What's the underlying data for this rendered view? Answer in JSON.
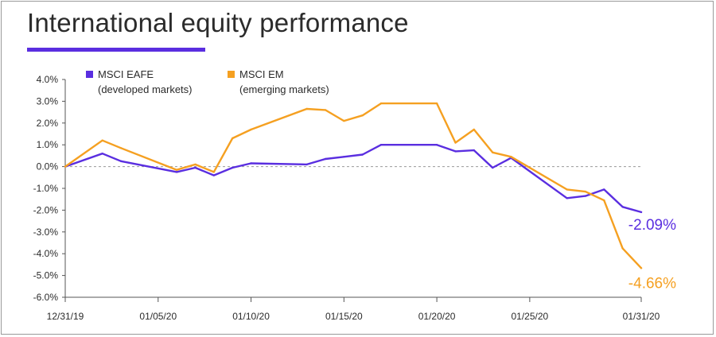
{
  "title": "International equity performance",
  "colors": {
    "accent": "#5a2ee0",
    "eafe": "#5a2ee0",
    "em": "#f5a021",
    "axis": "#555555",
    "zero_line": "#999999"
  },
  "chart_data": {
    "type": "line",
    "title": "International equity performance",
    "xlabel": "",
    "ylabel": "",
    "x_ticks": [
      "12/31/19",
      "01/05/20",
      "01/10/20",
      "01/15/20",
      "01/20/20",
      "01/25/20",
      "01/31/20"
    ],
    "y_ticks": [
      "4.0%",
      "3.0%",
      "2.0%",
      "1.0%",
      "0.0%",
      "-1.0%",
      "-2.0%",
      "-3.0%",
      "-4.0%",
      "-5.0%",
      "-6.0%"
    ],
    "ylim": [
      -6.0,
      4.0
    ],
    "xlim": [
      "2019-12-31",
      "2020-01-31"
    ],
    "grid": false,
    "zero_reference_line": true,
    "legend_position": "top-left",
    "series": [
      {
        "name": "MSCI EAFE",
        "legend_line1": "MSCI EAFE",
        "legend_line2": "(developed markets)",
        "color": "#5a2ee0",
        "end_label": "-2.09%",
        "points": [
          [
            "2019-12-31",
            0.0
          ],
          [
            "2020-01-02",
            0.6
          ],
          [
            "2020-01-03",
            0.25
          ],
          [
            "2020-01-06",
            -0.25
          ],
          [
            "2020-01-07",
            -0.05
          ],
          [
            "2020-01-08",
            -0.4
          ],
          [
            "2020-01-09",
            -0.05
          ],
          [
            "2020-01-10",
            0.15
          ],
          [
            "2020-01-13",
            0.1
          ],
          [
            "2020-01-14",
            0.35
          ],
          [
            "2020-01-15",
            0.45
          ],
          [
            "2020-01-16",
            0.55
          ],
          [
            "2020-01-17",
            1.0
          ],
          [
            "2020-01-20",
            1.0
          ],
          [
            "2020-01-21",
            0.7
          ],
          [
            "2020-01-22",
            0.75
          ],
          [
            "2020-01-23",
            -0.05
          ],
          [
            "2020-01-24",
            0.4
          ],
          [
            "2020-01-27",
            -1.45
          ],
          [
            "2020-01-28",
            -1.35
          ],
          [
            "2020-01-29",
            -1.05
          ],
          [
            "2020-01-30",
            -1.85
          ],
          [
            "2020-01-31",
            -2.09
          ]
        ]
      },
      {
        "name": "MSCI EM",
        "legend_line1": "MSCI EM",
        "legend_line2": "(emerging markets)",
        "color": "#f5a021",
        "end_label": "-4.66%",
        "points": [
          [
            "2019-12-31",
            0.0
          ],
          [
            "2020-01-02",
            1.2
          ],
          [
            "2020-01-03",
            0.85
          ],
          [
            "2020-01-06",
            -0.15
          ],
          [
            "2020-01-07",
            0.1
          ],
          [
            "2020-01-08",
            -0.25
          ],
          [
            "2020-01-09",
            1.3
          ],
          [
            "2020-01-10",
            1.7
          ],
          [
            "2020-01-13",
            2.65
          ],
          [
            "2020-01-14",
            2.6
          ],
          [
            "2020-01-15",
            2.1
          ],
          [
            "2020-01-16",
            2.35
          ],
          [
            "2020-01-17",
            2.9
          ],
          [
            "2020-01-20",
            2.9
          ],
          [
            "2020-01-21",
            1.1
          ],
          [
            "2020-01-22",
            1.7
          ],
          [
            "2020-01-23",
            0.65
          ],
          [
            "2020-01-24",
            0.45
          ],
          [
            "2020-01-27",
            -1.05
          ],
          [
            "2020-01-28",
            -1.15
          ],
          [
            "2020-01-29",
            -1.55
          ],
          [
            "2020-01-30",
            -3.75
          ],
          [
            "2020-01-31",
            -4.66
          ]
        ]
      }
    ]
  }
}
